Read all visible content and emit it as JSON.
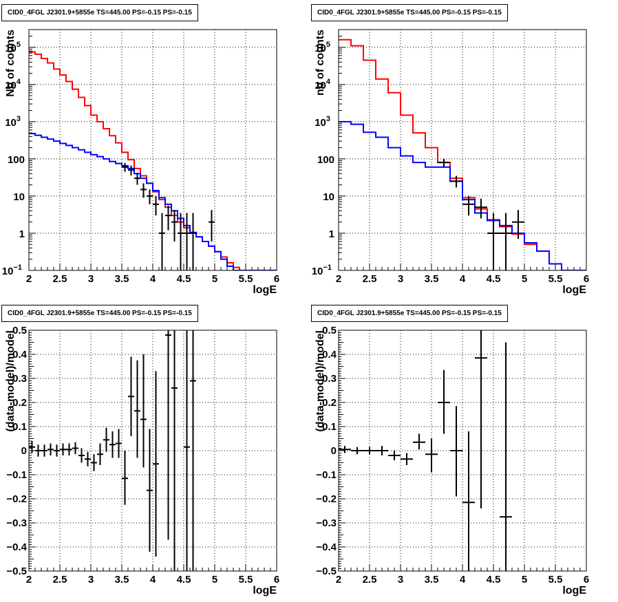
{
  "chart_data": [
    {
      "type": "step-histogram",
      "title": "CID0_4FGL J2301.9+5855e TS=445.00 PS=-0.15 PS=-0.15",
      "xlabel": "logE",
      "ylabel": "Nb of counts",
      "xlim": [
        2,
        6
      ],
      "ylim": [
        0.1,
        300000
      ],
      "yscale": "log",
      "grid": true,
      "bin_edges": [
        2.0,
        2.1,
        2.2,
        2.3,
        2.4,
        2.5,
        2.6,
        2.7,
        2.8,
        2.9,
        3.0,
        3.1,
        3.2,
        3.3,
        3.4,
        3.5,
        3.6,
        3.7,
        3.8,
        3.9,
        4.0,
        4.1,
        4.2,
        4.3,
        4.4,
        4.5,
        4.6,
        4.7,
        4.8,
        4.9,
        5.0,
        5.1,
        5.2,
        5.3,
        5.4,
        5.5,
        5.6,
        5.7,
        5.8,
        5.9,
        6.0
      ],
      "series": [
        {
          "color": "#ff0000",
          "values": [
            75000,
            65000,
            50000,
            38000,
            26000,
            18000,
            12000,
            7500,
            4500,
            2700,
            1500,
            1000,
            650,
            420,
            270,
            150,
            95,
            55,
            35,
            22,
            13,
            8,
            5,
            3,
            2,
            1.4,
            1.05,
            0.8,
            0.6,
            0.45,
            0.32,
            0.23,
            0.16,
            0.12,
            0.1,
            0.1,
            0.1,
            0.1,
            0.1,
            0.1
          ]
        },
        {
          "color": "#0000ff",
          "values": [
            480,
            430,
            380,
            340,
            300,
            260,
            230,
            200,
            175,
            150,
            130,
            115,
            100,
            85,
            75,
            65,
            55,
            40,
            30,
            22,
            14,
            9,
            6,
            4,
            2.5,
            1.6,
            1.05,
            0.8,
            0.6,
            0.45,
            0.32,
            0.2,
            0.13,
            0.1,
            0.1,
            0.1,
            0.1,
            0.1,
            0.1,
            0.1
          ]
        }
      ],
      "points": {
        "color": "#000000",
        "x": [
          3.55,
          3.65,
          3.75,
          3.85,
          3.95,
          4.05,
          4.15,
          4.25,
          4.35,
          4.45,
          4.55,
          4.65,
          4.95
        ],
        "y": [
          60,
          50,
          30,
          15,
          10,
          6,
          1,
          3,
          2,
          1,
          1,
          1,
          2
        ],
        "xerr": 0.05,
        "ylow": [
          45,
          36,
          20,
          9,
          6,
          3,
          0.1,
          1.2,
          0.6,
          0.1,
          0.1,
          0.1,
          0.6
        ],
        "yhigh": [
          78,
          66,
          42,
          22,
          15,
          10,
          3.5,
          5.5,
          4.2,
          3.5,
          3.5,
          3.5,
          4.2
        ]
      }
    },
    {
      "type": "step-histogram",
      "title": "CID0_4FGL J2301.9+5855e TS=445.00 PS=-0.15 PS=-0.15",
      "xlabel": "logE",
      "ylabel": "nb of counts",
      "xlim": [
        2,
        6
      ],
      "ylim": [
        0.1,
        300000
      ],
      "yscale": "log",
      "grid": true,
      "bin_edges": [
        2.0,
        2.2,
        2.4,
        2.6,
        2.8,
        3.0,
        3.2,
        3.4,
        3.6,
        3.8,
        4.0,
        4.2,
        4.4,
        4.6,
        4.8,
        5.0,
        5.2,
        5.4,
        5.6,
        5.8,
        6.0
      ],
      "series": [
        {
          "color": "#ff0000",
          "values": [
            160000,
            110000,
            45000,
            14000,
            6000,
            1500,
            500,
            200,
            80,
            30,
            9,
            4.5,
            2.3,
            1.5,
            0.95,
            0.5,
            0.33,
            0.15,
            0.1,
            0.1
          ]
        },
        {
          "color": "#0000ff",
          "values": [
            1000,
            850,
            520,
            380,
            200,
            120,
            80,
            60,
            60,
            25,
            8,
            3.5,
            2.2,
            1.6,
            1.0,
            0.55,
            0.33,
            0.15,
            0.1,
            0.1
          ]
        }
      ],
      "points": {
        "color": "#000000",
        "x": [
          3.7,
          3.9,
          4.1,
          4.3,
          4.5,
          4.7,
          4.9
        ],
        "y": [
          80,
          25,
          6,
          5,
          1,
          1,
          2
        ],
        "xerr": 0.1,
        "ylow": [
          62,
          17,
          3,
          2.5,
          0.1,
          0.1,
          0.7
        ],
        "yhigh": [
          100,
          35,
          10,
          8.5,
          3.5,
          3.5,
          4.2
        ]
      }
    },
    {
      "type": "scatter-errorbar",
      "title": "CID0_4FGL J2301.9+5855e TS=445.00 PS=-0.15 PS=-0.15",
      "xlabel": "logE",
      "ylabel": "(data-model)/model",
      "xlim": [
        2,
        6
      ],
      "ylim": [
        -0.5,
        0.5
      ],
      "grid": true,
      "points": {
        "color": "#000000",
        "x": [
          2.05,
          2.15,
          2.25,
          2.35,
          2.45,
          2.55,
          2.65,
          2.75,
          2.85,
          2.95,
          3.05,
          3.15,
          3.25,
          3.35,
          3.45,
          3.55,
          3.65,
          3.75,
          3.85,
          3.95,
          4.05,
          4.25,
          4.35,
          4.55,
          4.65
        ],
        "y": [
          0.015,
          0.0,
          0.0,
          0.005,
          0.0,
          0.005,
          0.005,
          0.01,
          -0.02,
          -0.035,
          -0.05,
          -0.015,
          0.045,
          0.025,
          0.03,
          -0.115,
          0.225,
          0.165,
          0.13,
          -0.165,
          -0.055,
          0.48,
          0.26,
          0.015,
          0.29
        ],
        "xerr": 0.05,
        "ylow": [
          -0.01,
          -0.025,
          -0.025,
          -0.02,
          -0.025,
          -0.02,
          -0.02,
          -0.015,
          -0.05,
          -0.065,
          -0.085,
          -0.06,
          -0.005,
          -0.03,
          -0.03,
          -0.225,
          0.06,
          -0.03,
          -0.07,
          -0.42,
          -0.44,
          -0.37,
          -0.5,
          -0.5,
          -0.5
        ],
        "yhigh": [
          0.04,
          0.025,
          0.025,
          0.03,
          0.025,
          0.03,
          0.03,
          0.035,
          0.01,
          -0.005,
          -0.015,
          0.03,
          0.095,
          0.08,
          0.09,
          0.0,
          0.39,
          0.375,
          0.4,
          0.09,
          0.33,
          0.5,
          0.5,
          0.5,
          0.5
        ]
      }
    },
    {
      "type": "scatter-errorbar",
      "title": "CID0_4FGL J2301.9+5855e TS=445.00 PS=-0.15 PS=-0.15",
      "xlabel": "logE",
      "ylabel": "(data-model)/model",
      "xlim": [
        2,
        6
      ],
      "ylim": [
        -0.5,
        0.5
      ],
      "grid": true,
      "points": {
        "color": "#000000",
        "x": [
          2.1,
          2.3,
          2.5,
          2.7,
          2.9,
          3.1,
          3.3,
          3.5,
          3.7,
          3.9,
          4.1,
          4.3,
          4.7
        ],
        "y": [
          0.005,
          0.0,
          0.0,
          0.0,
          -0.02,
          -0.035,
          0.035,
          -0.015,
          0.2,
          0.0,
          -0.215,
          0.385,
          -0.275
        ],
        "xerr": 0.1,
        "ylow": [
          -0.01,
          -0.015,
          -0.015,
          -0.02,
          -0.04,
          -0.06,
          0.005,
          -0.09,
          0.07,
          -0.19,
          -0.5,
          -0.24,
          -0.5
        ],
        "yhigh": [
          0.02,
          0.015,
          0.015,
          0.02,
          0.0,
          -0.01,
          0.07,
          0.05,
          0.335,
          0.185,
          0.08,
          0.5,
          0.45
        ]
      }
    }
  ]
}
